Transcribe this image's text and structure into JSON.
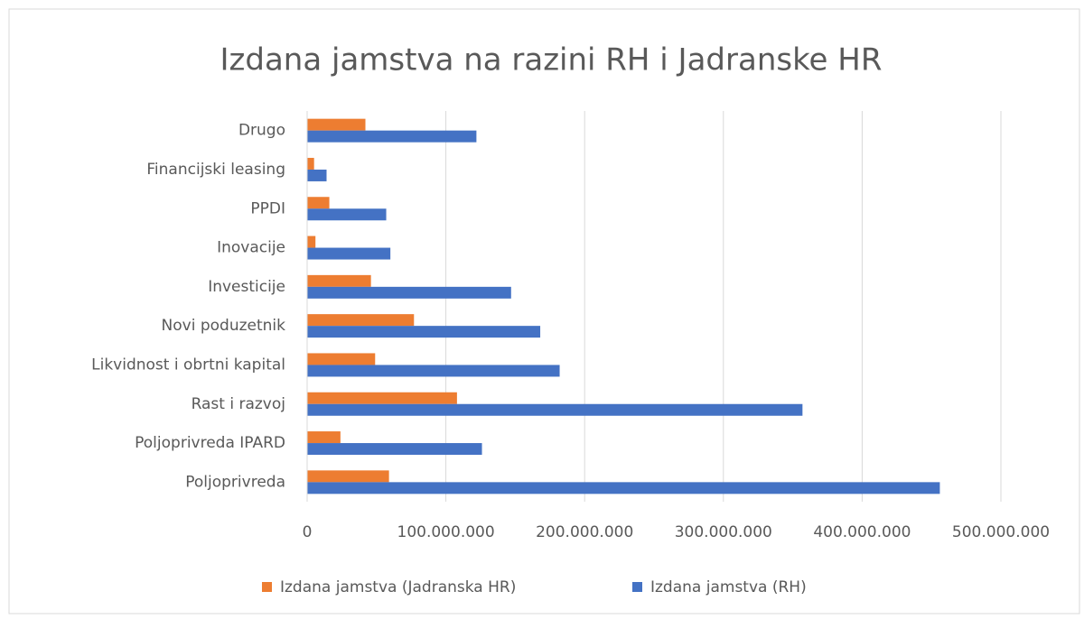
{
  "chart_data": {
    "type": "bar",
    "orientation": "horizontal",
    "title": "Izdana jamstva na razini RH i Jadranske HR",
    "categories": [
      "Drugo",
      "Financijski leasing",
      "PPDI",
      "Inovacije",
      "Investicije",
      "Novi poduzetnik",
      "Likvidnost i obrtni kapital",
      "Rast i razvoj",
      "Poljoprivreda IPARD",
      "Poljoprivreda"
    ],
    "series": [
      {
        "name": "Izdana jamstva (Jadranska HR)",
        "color": "#ed7d31",
        "values": [
          42000000,
          5000000,
          16000000,
          6000000,
          46000000,
          77000000,
          49000000,
          108000000,
          24000000,
          59000000
        ]
      },
      {
        "name": "Izdana jamstva (RH)",
        "color": "#4472c4",
        "values": [
          122000000,
          14000000,
          57000000,
          60000000,
          147000000,
          168000000,
          182000000,
          357000000,
          126000000,
          456000000
        ]
      }
    ],
    "xlim": [
      0,
      500000000
    ],
    "xticks": [
      0,
      {
        "value": 100000000,
        "label": "100.000.000"
      },
      {
        "value": 200000000,
        "label": "200.000.000"
      },
      {
        "value": 300000000,
        "label": "300.000.000"
      },
      {
        "value": 400000000,
        "label": "400.000.000"
      },
      {
        "value": 500000000,
        "label": "500.000.000"
      }
    ],
    "grid": true,
    "legend": "bottom"
  }
}
